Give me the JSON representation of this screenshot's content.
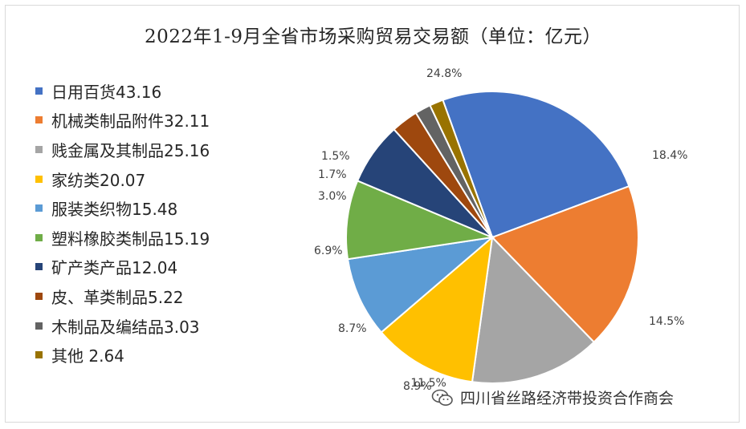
{
  "chart_data": {
    "type": "pie",
    "title": "2022年1-9月全省市场采购贸易交易额（单位：亿元）",
    "legend_position": "left",
    "slices": [
      {
        "legend": "日用百货43.16",
        "value": 43.16,
        "label": "24.8%",
        "color": "#4472C4"
      },
      {
        "legend": "机械类制品附件32.11",
        "value": 32.11,
        "label": "18.4%",
        "color": "#ED7D31"
      },
      {
        "legend": "贱金属及其制品25.16",
        "value": 25.16,
        "label": "14.5%",
        "color": "#A5A5A5"
      },
      {
        "legend": "家纺类20.07",
        "value": 20.07,
        "label": "11.5%",
        "color": "#FFC000"
      },
      {
        "legend": "服装类织物15.48",
        "value": 15.48,
        "label": "8.9%",
        "color": "#5B9BD5"
      },
      {
        "legend": "塑料橡胶类制品15.19",
        "value": 15.19,
        "label": "8.7%",
        "color": "#70AD47"
      },
      {
        "legend": "矿产类产品12.04",
        "value": 12.04,
        "label": "6.9%",
        "color": "#264478"
      },
      {
        "legend": "皮、革类制品5.22",
        "value": 5.22,
        "label": "3.0%",
        "color": "#9E480E"
      },
      {
        "legend": "木制品及编结品3.03",
        "value": 3.03,
        "label": "1.7%",
        "color": "#636363"
      },
      {
        "legend": "其他 2.64",
        "value": 2.64,
        "label": "1.5%",
        "color": "#997300"
      }
    ]
  },
  "watermark": {
    "text": "四川省丝路经济带投资合作商会",
    "icon": "wechat-icon"
  }
}
